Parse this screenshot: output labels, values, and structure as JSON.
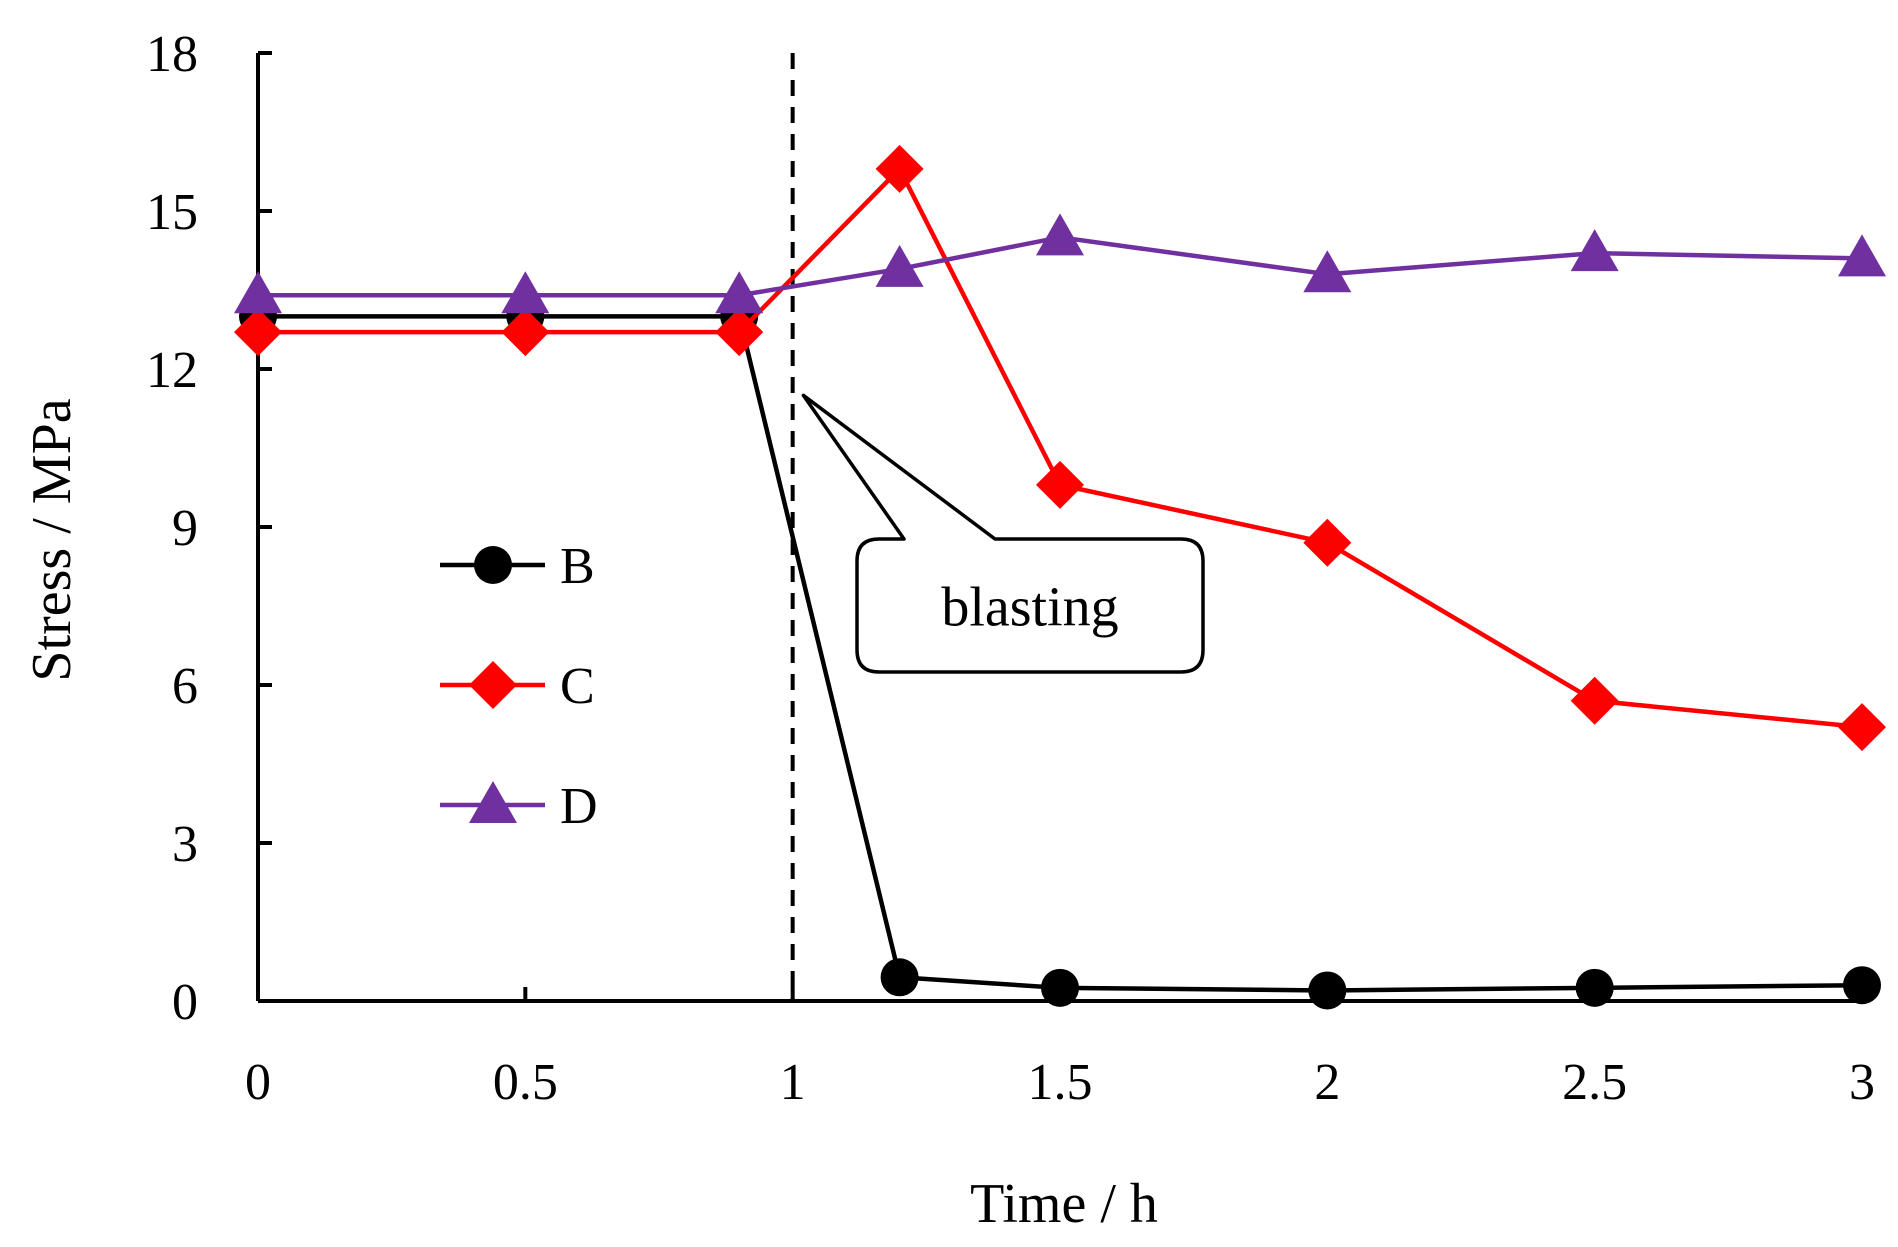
{
  "chart_data": {
    "type": "line",
    "title": "",
    "xlabel": "Time / h",
    "ylabel": "Stress / MPa",
    "xlim": [
      0,
      3
    ],
    "ylim": [
      0,
      18
    ],
    "xticks": [
      0,
      0.5,
      1,
      1.5,
      2,
      2.5,
      3
    ],
    "xtick_labels": [
      "0",
      "0.5",
      "1",
      "1.5",
      "2",
      "2.5",
      "3"
    ],
    "yticks": [
      0,
      3,
      6,
      9,
      12,
      15,
      18
    ],
    "ytick_labels": [
      "0",
      "3",
      "6",
      "9",
      "12",
      "15",
      "18"
    ],
    "grid": false,
    "legend_position": "center-left",
    "series": [
      {
        "name": "B",
        "color": "#000000",
        "marker": "circle",
        "x": [
          0,
          0.5,
          0.9,
          1.2,
          1.5,
          2,
          2.5,
          3
        ],
        "y": [
          13.0,
          13.0,
          13.0,
          0.45,
          0.25,
          0.2,
          0.25,
          0.3
        ]
      },
      {
        "name": "C",
        "color": "#ff0000",
        "marker": "diamond",
        "x": [
          0,
          0.5,
          0.9,
          1.2,
          1.5,
          2,
          2.5,
          3
        ],
        "y": [
          12.7,
          12.7,
          12.7,
          15.8,
          9.8,
          8.7,
          5.7,
          5.2
        ]
      },
      {
        "name": "D",
        "color": "#7030a0",
        "marker": "triangle",
        "x": [
          0,
          0.5,
          0.9,
          1.2,
          1.5,
          2,
          2.5,
          3
        ],
        "y": [
          13.4,
          13.4,
          13.4,
          13.9,
          14.5,
          13.8,
          14.2,
          14.1
        ]
      }
    ],
    "reference_line": {
      "x": 1,
      "style": "dashed"
    },
    "annotation": {
      "text": "blasting",
      "points_to": {
        "x": 1.02,
        "y": 11.5
      }
    }
  }
}
